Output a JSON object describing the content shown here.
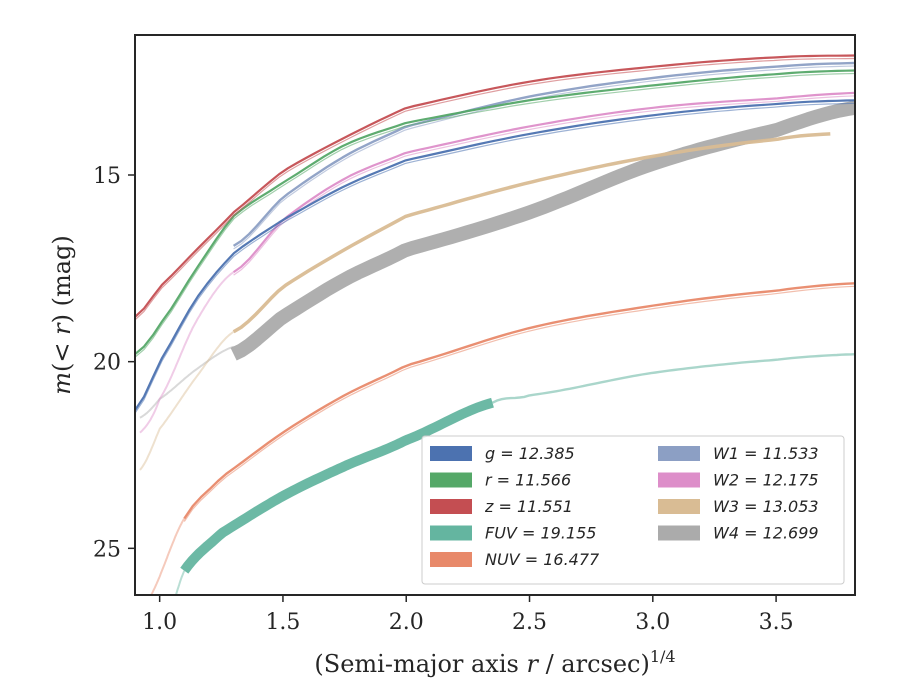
{
  "chart_data": {
    "type": "line",
    "xlabel": "(Semi-major axis r / arcsec)",
    "xlabel_sup": "1/4",
    "ylabel": "m(< r) (mag)",
    "xlim": [
      0.9,
      3.82
    ],
    "ylim": [
      26.25,
      11.25
    ],
    "y_inverted": true,
    "xticks": [
      1.0,
      1.5,
      2.0,
      2.5,
      3.0,
      3.5
    ],
    "xtick_labels": [
      "1.0",
      "1.5",
      "2.0",
      "2.5",
      "3.0",
      "3.5"
    ],
    "yticks": [
      15,
      20,
      25
    ],
    "ytick_labels": [
      "15",
      "20",
      "25"
    ],
    "legend_position": "lower-right",
    "legend_columns": 2,
    "series": [
      {
        "name": "g = 12.385",
        "color": "#4c72b0",
        "mtot": 12.385,
        "x_start": 0.9,
        "x_end": 3.82,
        "x_faint_end": 1.15,
        "y": [
          [
            0.9,
            21.3
          ],
          [
            1.0,
            20.0
          ],
          [
            1.15,
            18.3
          ],
          [
            1.3,
            17.1
          ],
          [
            1.5,
            16.2
          ],
          [
            1.75,
            15.3
          ],
          [
            2.0,
            14.6
          ],
          [
            2.5,
            13.9
          ],
          [
            3.0,
            13.4
          ],
          [
            3.5,
            13.1
          ],
          [
            3.82,
            13.0
          ]
        ],
        "width": 2.2
      },
      {
        "name": "r = 11.566",
        "color": "#55a868",
        "mtot": 11.566,
        "x_start": 0.9,
        "x_end": 3.82,
        "x_faint_end": 1.1,
        "y": [
          [
            0.9,
            19.8
          ],
          [
            1.0,
            19.0
          ],
          [
            1.15,
            17.5
          ],
          [
            1.3,
            16.1
          ],
          [
            1.5,
            15.2
          ],
          [
            1.75,
            14.2
          ],
          [
            2.0,
            13.6
          ],
          [
            2.5,
            13.0
          ],
          [
            3.0,
            12.6
          ],
          [
            3.5,
            12.3
          ],
          [
            3.82,
            12.2
          ]
        ],
        "width": 2.2
      },
      {
        "name": "z = 11.551",
        "color": "#c44e52",
        "mtot": 11.551,
        "x_start": 0.9,
        "x_end": 3.82,
        "x_faint_end": 1.05,
        "y": [
          [
            0.9,
            18.8
          ],
          [
            1.0,
            18.0
          ],
          [
            1.15,
            17.0
          ],
          [
            1.3,
            16.0
          ],
          [
            1.5,
            14.9
          ],
          [
            1.75,
            14.0
          ],
          [
            2.0,
            13.2
          ],
          [
            2.5,
            12.5
          ],
          [
            3.0,
            12.1
          ],
          [
            3.5,
            11.85
          ],
          [
            3.82,
            11.8
          ]
        ],
        "width": 2.2
      },
      {
        "name": "FUV = 19.155",
        "color": "#64b5a0",
        "mtot": 19.155,
        "x_start": 1.1,
        "x_end": 3.82,
        "x_faint_end": 2.35,
        "faint_before_start": true,
        "y": [
          [
            1.0,
            27.5
          ],
          [
            1.1,
            25.6
          ],
          [
            1.25,
            24.6
          ],
          [
            1.5,
            23.6
          ],
          [
            1.75,
            22.8
          ],
          [
            2.0,
            22.1
          ],
          [
            2.35,
            21.1
          ],
          [
            2.5,
            20.9
          ],
          [
            3.0,
            20.3
          ],
          [
            3.5,
            19.95
          ],
          [
            3.82,
            19.8
          ]
        ],
        "width": 10
      },
      {
        "name": "NUV = 16.477",
        "color": "#e8896a",
        "mtot": 16.477,
        "x_start": 1.1,
        "x_end": 3.82,
        "x_faint_end": 1.1,
        "faint_before_start": true,
        "y": [
          [
            0.94,
            26.5
          ],
          [
            1.1,
            24.2
          ],
          [
            1.25,
            23.1
          ],
          [
            1.5,
            21.9
          ],
          [
            1.75,
            20.9
          ],
          [
            2.0,
            20.1
          ],
          [
            2.5,
            19.1
          ],
          [
            3.0,
            18.5
          ],
          [
            3.5,
            18.1
          ],
          [
            3.82,
            17.9
          ]
        ],
        "width": 2.4
      },
      {
        "name": "W1 = 11.533",
        "color": "#8c9fc4",
        "mtot": 11.533,
        "x_start": 1.3,
        "x_end": 3.82,
        "x_faint_end": 1.3,
        "faint_before_start": true,
        "y": [
          [
            1.3,
            16.9
          ],
          [
            1.5,
            15.6
          ],
          [
            1.75,
            14.5
          ],
          [
            2.0,
            13.7
          ],
          [
            2.5,
            12.9
          ],
          [
            3.0,
            12.4
          ],
          [
            3.5,
            12.1
          ],
          [
            3.82,
            12.0
          ]
        ],
        "width": 2.4
      },
      {
        "name": "W2 = 12.175",
        "color": "#dd8ec9",
        "mtot": 12.175,
        "x_start": 1.3,
        "x_end": 3.82,
        "x_faint_end": 1.3,
        "faint_before_start": true,
        "faint_pre": [
          [
            0.92,
            21.9
          ],
          [
            1.0,
            21.0
          ],
          [
            1.15,
            18.9
          ],
          [
            1.3,
            17.6
          ]
        ],
        "y": [
          [
            1.3,
            17.6
          ],
          [
            1.5,
            16.2
          ],
          [
            1.75,
            15.1
          ],
          [
            2.0,
            14.4
          ],
          [
            2.5,
            13.7
          ],
          [
            3.0,
            13.2
          ],
          [
            3.5,
            12.95
          ],
          [
            3.82,
            12.8
          ]
        ],
        "width": 2.2
      },
      {
        "name": "W3 = 13.053",
        "color": "#d9bc94",
        "mtot": 13.053,
        "x_start": 1.3,
        "x_end": 3.72,
        "x_faint_end": 1.3,
        "faint_before_start": true,
        "faint_pre": [
          [
            0.92,
            22.9
          ],
          [
            1.0,
            21.8
          ],
          [
            1.15,
            20.4
          ],
          [
            1.3,
            19.2
          ]
        ],
        "y": [
          [
            1.3,
            19.2
          ],
          [
            1.5,
            18.0
          ],
          [
            1.75,
            17.0
          ],
          [
            2.0,
            16.1
          ],
          [
            2.5,
            15.2
          ],
          [
            3.0,
            14.5
          ],
          [
            3.5,
            14.05
          ],
          [
            3.72,
            13.9
          ]
        ],
        "width": 3.5
      },
      {
        "name": "W4 = 12.699",
        "color": "#ababab",
        "mtot": 12.699,
        "x_start": 1.3,
        "x_end": 3.82,
        "x_faint_end": 1.3,
        "faint_before_start": true,
        "faint_pre": [
          [
            0.92,
            21.5
          ],
          [
            1.0,
            21.0
          ],
          [
            1.15,
            20.2
          ],
          [
            1.3,
            19.6
          ]
        ],
        "y": [
          [
            1.3,
            19.8
          ],
          [
            1.5,
            18.8
          ],
          [
            1.75,
            17.8
          ],
          [
            2.0,
            17.0
          ],
          [
            2.5,
            16.0
          ],
          [
            3.0,
            14.7
          ],
          [
            3.5,
            13.8
          ],
          [
            3.82,
            13.2
          ]
        ],
        "width": 14
      }
    ],
    "legend": [
      {
        "label": "g = 12.385",
        "color": "#4c72b0"
      },
      {
        "label": "r = 11.566",
        "color": "#55a868"
      },
      {
        "label": "z = 11.551",
        "color": "#c44e52"
      },
      {
        "label": "FUV = 19.155",
        "color": "#64b5a0"
      },
      {
        "label": "NUV = 16.477",
        "color": "#e8896a"
      },
      {
        "label": "W1 = 11.533",
        "color": "#8c9fc4"
      },
      {
        "label": "W2 = 12.175",
        "color": "#dd8ec9"
      },
      {
        "label": "W3 = 13.053",
        "color": "#d9bc94"
      },
      {
        "label": "W4 = 12.699",
        "color": "#ababab"
      }
    ]
  }
}
